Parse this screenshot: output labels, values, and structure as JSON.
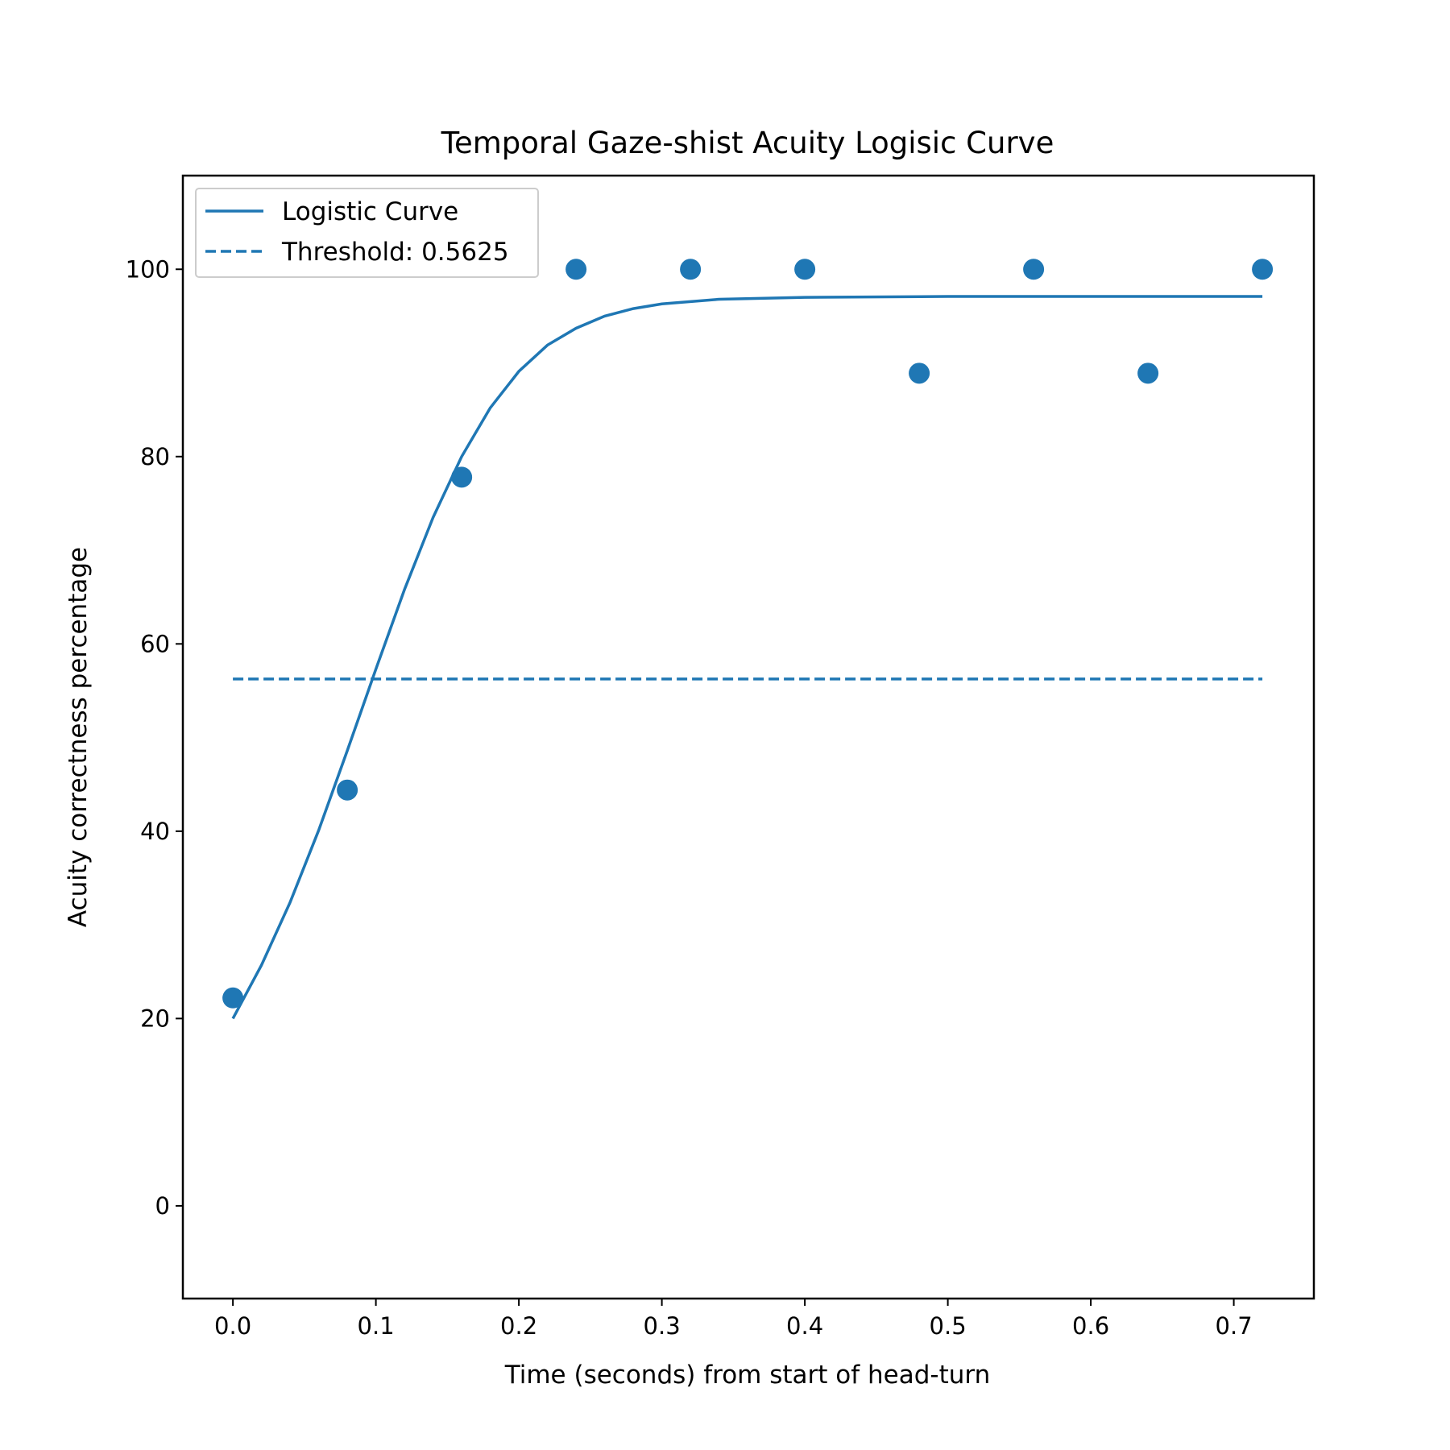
{
  "chart_data": {
    "type": "scatter",
    "title": "Temporal Gaze-shist Acuity Logisic Curve",
    "xlabel": "Time (seconds) from start of head-turn",
    "ylabel": "Acuity correctness percentage",
    "xlim": [
      -0.035,
      0.756
    ],
    "ylim": [
      -9.9,
      110
    ],
    "xticks": [
      0.0,
      0.1,
      0.2,
      0.3,
      0.4,
      0.5,
      0.6,
      0.7
    ],
    "xtick_labels": [
      "0.0",
      "0.1",
      "0.2",
      "0.3",
      "0.4",
      "0.5",
      "0.6",
      "0.7"
    ],
    "yticks": [
      0,
      20,
      40,
      60,
      80,
      100
    ],
    "ytick_labels": [
      "0",
      "20",
      "40",
      "60",
      "80",
      "100"
    ],
    "grid": false,
    "legend_position": "top-left",
    "color": "#1f77b4",
    "points": {
      "x": [
        0.0,
        0.08,
        0.16,
        0.24,
        0.32,
        0.4,
        0.48,
        0.56,
        0.64,
        0.72
      ],
      "y": [
        22.2,
        44.4,
        77.8,
        100.0,
        100.0,
        100.0,
        88.9,
        100.0,
        88.9,
        100.0
      ]
    },
    "series": [
      {
        "name": "Logistic Curve",
        "style": "solid",
        "x": [
          0.0,
          0.02,
          0.04,
          0.06,
          0.08,
          0.1,
          0.12,
          0.14,
          0.16,
          0.18,
          0.2,
          0.22,
          0.24,
          0.26,
          0.28,
          0.3,
          0.34,
          0.4,
          0.5,
          0.6,
          0.72
        ],
        "y": [
          20.0,
          25.7,
          32.4,
          40.1,
          48.6,
          57.3,
          65.8,
          73.5,
          80.0,
          85.2,
          89.1,
          91.9,
          93.7,
          95.0,
          95.8,
          96.3,
          96.8,
          97.0,
          97.1,
          97.1,
          97.1
        ]
      },
      {
        "name": "Threshold: 0.5625",
        "style": "dashed",
        "x": [
          0.0,
          0.72
        ],
        "y": [
          56.25,
          56.25
        ]
      }
    ]
  }
}
